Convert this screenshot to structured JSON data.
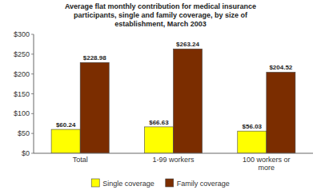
{
  "chart_data": {
    "type": "bar",
    "title": "Average flat monthly contribution for medical insurance\nparticipants, single and family coverage, by size of\nestablishment, March 2003",
    "categories": [
      "Total",
      "1-99 workers",
      "100 workers or\nmore"
    ],
    "series": [
      {
        "name": "Single coverage",
        "color": "#FFFF00",
        "values": [
          60.24,
          66.63,
          56.03
        ],
        "value_labels": [
          "$60.24",
          "$66.63",
          "$56.03"
        ]
      },
      {
        "name": "Family coverage",
        "color": "#7B2D00",
        "values": [
          228.98,
          263.24,
          204.52
        ],
        "value_labels": [
          "$228.98",
          "$263.24",
          "$204.52"
        ]
      }
    ],
    "ylim": [
      0,
      300
    ],
    "yticks": [
      {
        "value": 0,
        "label": "$0"
      },
      {
        "value": 50,
        "label": "$50"
      },
      {
        "value": 100,
        "label": "$100"
      },
      {
        "value": 150,
        "label": "$150"
      },
      {
        "value": 200,
        "label": "$200"
      },
      {
        "value": 250,
        "label": "$250"
      },
      {
        "value": 300,
        "label": "$300"
      }
    ],
    "data_labels": true,
    "grid": false,
    "legend": "bottom"
  }
}
